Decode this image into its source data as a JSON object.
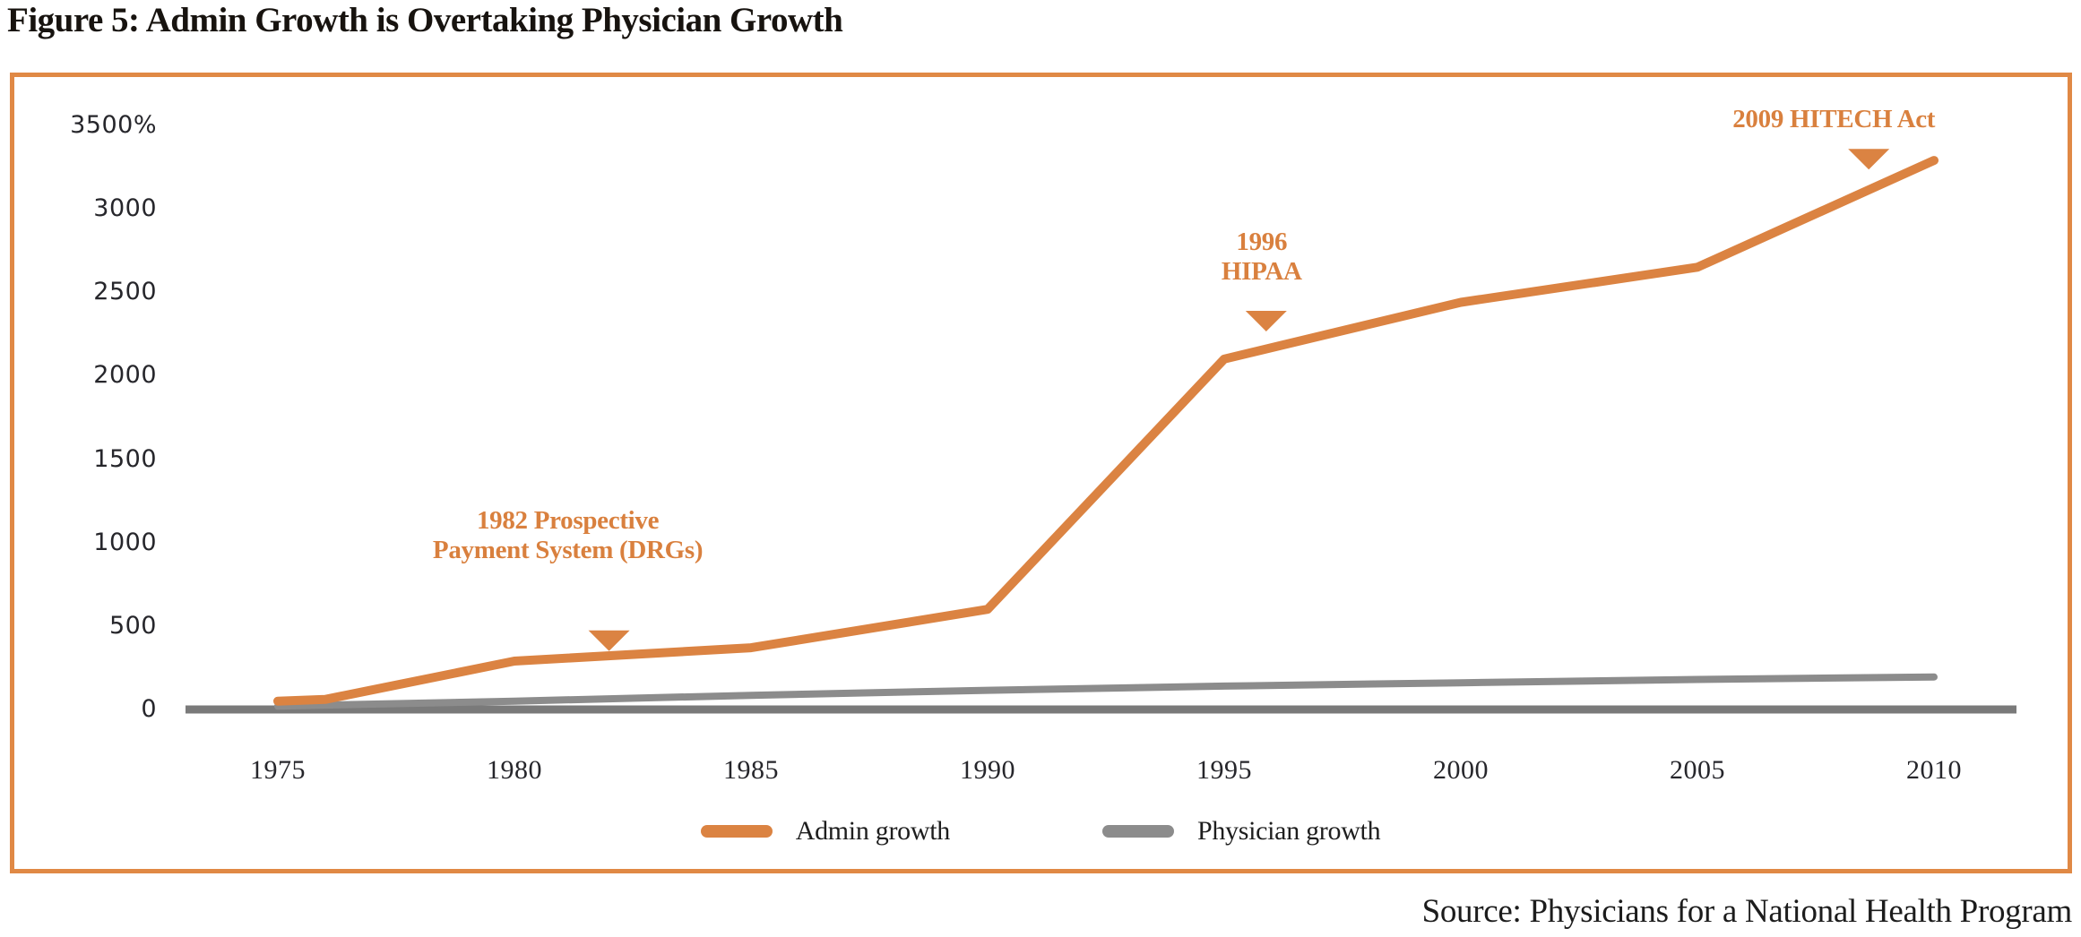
{
  "title": "Figure 5: Admin Growth is Overtaking Physician Growth",
  "source": "Source: Physicians for a National Health Program",
  "colors": {
    "accent_orange": "#DB8342",
    "annotation_orange": "#D9803E",
    "frame_orange": "#E08945",
    "physician_gray": "#8C8C8C",
    "axis_gray": "#7A7A7A",
    "text_dark": "#26262b"
  },
  "chart_data": {
    "type": "line",
    "title": "Figure 5: Admin Growth is Overtaking Physician Growth",
    "xlabel": "",
    "ylabel": "",
    "y_unit": "percent growth",
    "xlim": [
      1973,
      2012
    ],
    "ylim": [
      0,
      3500
    ],
    "grid": false,
    "x_ticks": [
      1975,
      1980,
      1985,
      1990,
      1995,
      2000,
      2005,
      2010
    ],
    "y_ticks": [
      {
        "value": 3500,
        "label": "3500%"
      },
      {
        "value": 3000,
        "label": "3000"
      },
      {
        "value": 2500,
        "label": "2500"
      },
      {
        "value": 2000,
        "label": "2000"
      },
      {
        "value": 1500,
        "label": "1500"
      },
      {
        "value": 1000,
        "label": "1000"
      },
      {
        "value": 500,
        "label": "500"
      },
      {
        "value": 0,
        "label": "0"
      }
    ],
    "series": [
      {
        "name": "Admin growth",
        "color": "#DB8342",
        "points": [
          [
            1975,
            50
          ],
          [
            1976,
            60
          ],
          [
            1980,
            290
          ],
          [
            1985,
            370
          ],
          [
            1990,
            600
          ],
          [
            1995,
            2100
          ],
          [
            2000,
            2440
          ],
          [
            2005,
            2650
          ],
          [
            2010,
            3290
          ]
        ]
      },
      {
        "name": "Physician growth",
        "color": "#8C8C8C",
        "points": [
          [
            1975,
            20
          ],
          [
            1980,
            50
          ],
          [
            1985,
            85
          ],
          [
            1990,
            115
          ],
          [
            1995,
            140
          ],
          [
            2000,
            160
          ],
          [
            2005,
            180
          ],
          [
            2010,
            195
          ]
        ]
      }
    ],
    "annotations": [
      {
        "id": "drgs",
        "lines": [
          "1982 Prospective",
          "Payment System (DRGs)"
        ],
        "marker_year": 1982,
        "marker_pct": 415,
        "marker_dx": 0,
        "label_dx": -46,
        "label_top": 565
      },
      {
        "id": "hipaa",
        "lines": [
          "1996",
          "HIPAA"
        ],
        "marker_year": 1996,
        "marker_pct": 2330,
        "marker_dx": -6,
        "label_dx": -5,
        "label_top": 254
      },
      {
        "id": "hitech",
        "lines": [
          "2009 HITECH Act"
        ],
        "marker_year": 2009,
        "marker_pct": 3300,
        "marker_dx": -20,
        "label_dx": -39,
        "label_top": 117
      }
    ],
    "legend": {
      "position": "bottom-center",
      "items": [
        "Admin growth",
        "Physician growth"
      ]
    }
  }
}
